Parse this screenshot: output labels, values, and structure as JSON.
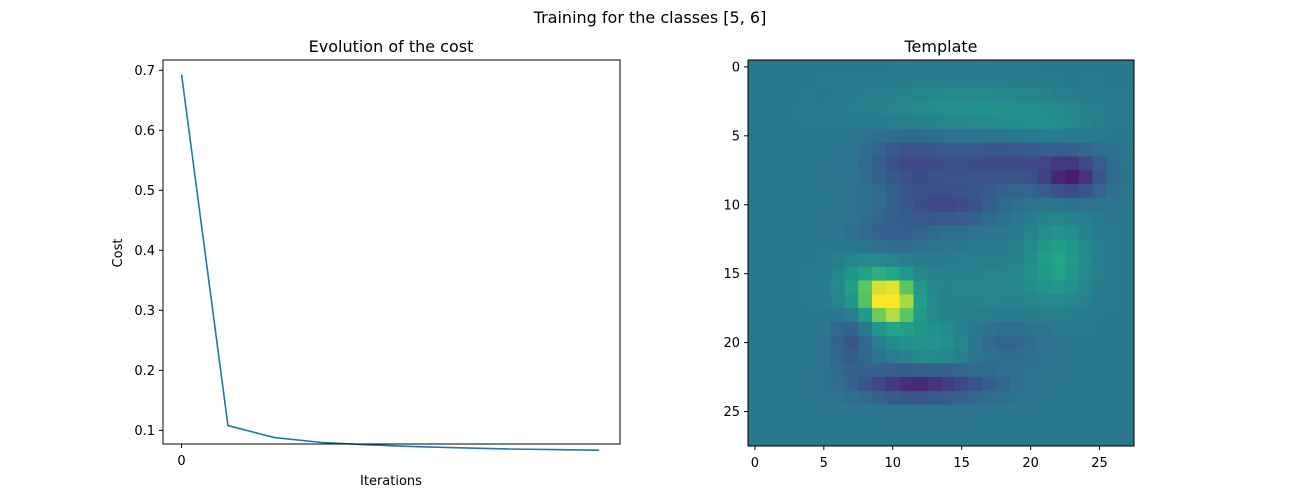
{
  "figure": {
    "title": "Training for the classes [5, 6]"
  },
  "chart_data": [
    {
      "type": "line",
      "title": "Evolution of the cost",
      "xlabel": "Iterations",
      "ylabel": "Cost",
      "x": [
        0,
        1,
        2,
        3,
        4,
        5,
        6,
        7,
        8,
        9
      ],
      "x_ticks": [
        0
      ],
      "x_tick_labels": [
        "0"
      ],
      "xlim": [
        -0.4,
        9.45
      ],
      "ylim": [
        0.0773,
        0.7171
      ],
      "y_ticks": [
        0.1,
        0.2,
        0.3,
        0.4,
        0.5,
        0.6,
        0.7
      ],
      "y_tick_labels": [
        "0.1",
        "0.2",
        "0.3",
        "0.4",
        "0.5",
        "0.6",
        "0.7"
      ],
      "series": [
        {
          "values": [
            0.693,
            0.108,
            0.088,
            0.08,
            0.076,
            0.073,
            0.071,
            0.069,
            0.068,
            0.067
          ],
          "color": "#1f77b4"
        }
      ],
      "grid": false
    },
    {
      "type": "heatmap",
      "title": "Template",
      "colormap": "viridis",
      "shape": [
        28,
        28
      ],
      "x_ticks": [
        0,
        5,
        10,
        15,
        20,
        25
      ],
      "y_ticks": [
        0,
        5,
        10,
        15,
        20,
        25
      ],
      "x_tick_labels": [
        "0",
        "5",
        "10",
        "15",
        "20",
        "25"
      ],
      "y_tick_labels": [
        "0",
        "5",
        "10",
        "15",
        "20",
        "25"
      ],
      "background_value": 0.0,
      "value_range": [
        -1,
        1
      ],
      "features": [
        {
          "row": 3,
          "col": 15,
          "amp": 0.25,
          "sr": 1.2,
          "sc": 4.5
        },
        {
          "row": 4,
          "col": 21,
          "amp": 0.2,
          "sr": 1.0,
          "sc": 2.5
        },
        {
          "row": 7,
          "col": 18,
          "amp": -0.45,
          "sr": 1.3,
          "sc": 4.0
        },
        {
          "row": 8,
          "col": 23,
          "amp": -0.65,
          "sr": 1.0,
          "sc": 1.5
        },
        {
          "row": 7,
          "col": 11,
          "amp": -0.35,
          "sr": 1.5,
          "sc": 2.0
        },
        {
          "row": 10,
          "col": 14,
          "amp": -0.45,
          "sr": 1.0,
          "sc": 2.5
        },
        {
          "row": 12,
          "col": 10,
          "amp": -0.25,
          "sr": 1.0,
          "sc": 2.0
        },
        {
          "row": 14,
          "col": 22,
          "amp": 0.45,
          "sr": 2.0,
          "sc": 1.5
        },
        {
          "row": 16,
          "col": 17,
          "amp": 0.15,
          "sr": 1.5,
          "sc": 3.0
        },
        {
          "row": 17,
          "col": 10,
          "amp": 1.0,
          "sr": 1.4,
          "sc": 1.4
        },
        {
          "row": 16,
          "col": 8,
          "amp": 0.4,
          "sr": 1.5,
          "sc": 1.5
        },
        {
          "row": 20,
          "col": 13,
          "amp": 0.3,
          "sr": 1.2,
          "sc": 2.0
        },
        {
          "row": 20,
          "col": 7,
          "amp": -0.35,
          "sr": 1.5,
          "sc": 1.0
        },
        {
          "row": 20,
          "col": 18,
          "amp": -0.2,
          "sr": 1.0,
          "sc": 2.0
        },
        {
          "row": 23,
          "col": 11,
          "amp": -0.6,
          "sr": 0.8,
          "sc": 2.5
        },
        {
          "row": 23,
          "col": 15,
          "amp": -0.3,
          "sr": 0.8,
          "sc": 2.5
        }
      ]
    }
  ]
}
